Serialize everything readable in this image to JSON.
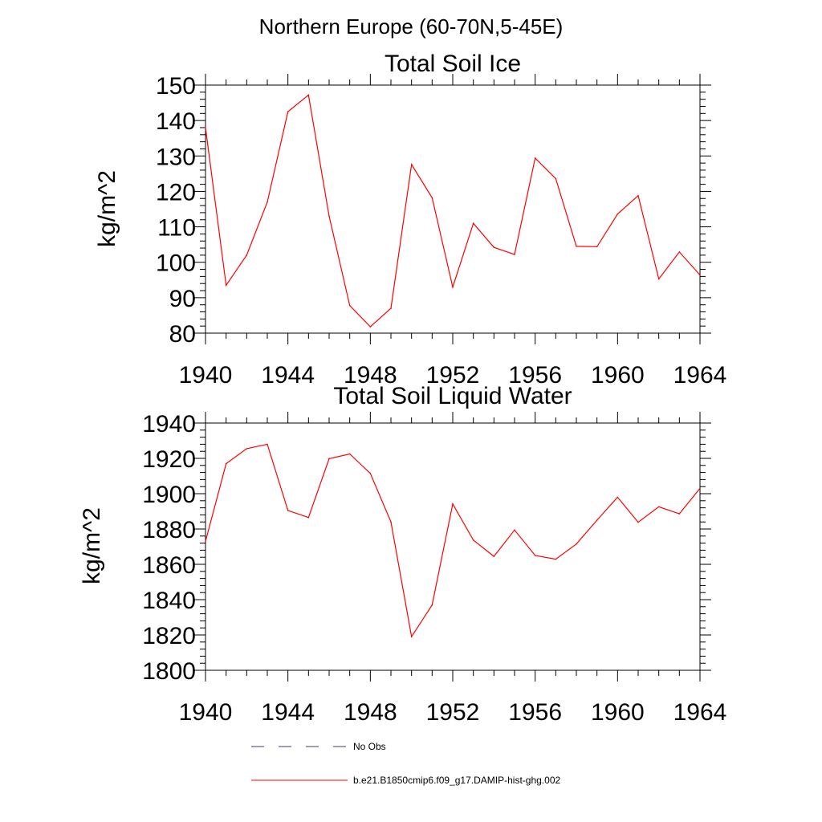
{
  "figure": {
    "title": "Northern Europe (60-70N,5-45E)",
    "line_color": "#ff0000",
    "obs_line_color": "#3b3b6e"
  },
  "legend": [
    {
      "label": "No Obs",
      "style": "dashed"
    },
    {
      "label": "b.e21.B1850cmip6.f09_g17.DAMIP-hist-ghg.002",
      "style": "solid"
    }
  ],
  "chart_data": [
    {
      "type": "line",
      "title": "Total Soil Ice",
      "xlabel": "",
      "ylabel": "kg/m^2",
      "xlim": [
        1940,
        1964
      ],
      "ylim": [
        80,
        150
      ],
      "xticks": [
        1940,
        1944,
        1948,
        1952,
        1956,
        1960,
        1964
      ],
      "yticks": [
        80,
        90,
        100,
        110,
        120,
        130,
        140,
        150
      ],
      "grid": false,
      "series": [
        {
          "x": [
            1940,
            1941,
            1942,
            1943,
            1944,
            1945,
            1946,
            1947,
            1948,
            1949,
            1950,
            1951,
            1952,
            1953,
            1954,
            1955,
            1956,
            1957,
            1958,
            1959,
            1960,
            1961,
            1962,
            1963,
            1964
          ],
          "values": [
            138,
            93.5,
            102,
            117,
            142.5,
            147.2,
            113,
            87.8,
            81.8,
            87,
            127.6,
            118.2,
            93,
            111,
            104.2,
            102.2,
            129.4,
            123.6,
            104.5,
            104.4,
            113.6,
            118.8,
            95.3,
            102.9,
            96.4
          ]
        }
      ]
    },
    {
      "type": "line",
      "title": "Total Soil Liquid Water",
      "xlabel": "",
      "ylabel": "kg/m^2",
      "xlim": [
        1940,
        1964
      ],
      "ylim": [
        1800,
        1940
      ],
      "xticks": [
        1940,
        1944,
        1948,
        1952,
        1956,
        1960,
        1964
      ],
      "yticks": [
        1800,
        1820,
        1840,
        1860,
        1880,
        1900,
        1920,
        1940
      ],
      "grid": false,
      "series": [
        {
          "x": [
            1940,
            1941,
            1942,
            1943,
            1944,
            1945,
            1946,
            1947,
            1948,
            1949,
            1950,
            1951,
            1952,
            1953,
            1954,
            1955,
            1956,
            1957,
            1958,
            1959,
            1960,
            1961,
            1962,
            1963,
            1964
          ],
          "values": [
            1873,
            1917,
            1925.5,
            1928,
            1890.5,
            1886.5,
            1919.8,
            1922.5,
            1911.5,
            1884,
            1819,
            1837,
            1894.2,
            1873.7,
            1864.5,
            1879.4,
            1865,
            1862.9,
            1871.5,
            1885,
            1898,
            1883.8,
            1892.6,
            1888.6,
            1903
          ]
        }
      ]
    }
  ]
}
